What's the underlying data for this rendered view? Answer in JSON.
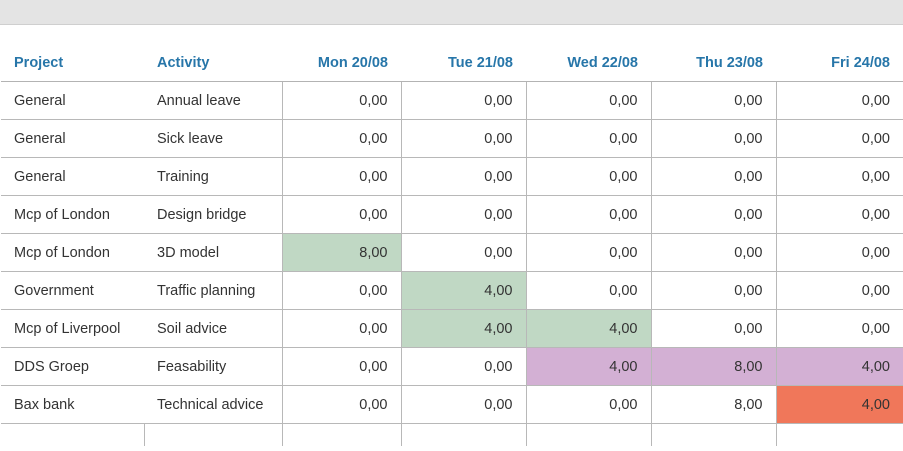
{
  "colors": {
    "header_text": "#2776a9",
    "green": "#c0d8c4",
    "purple": "#d3b0d4",
    "red": "#f0775a"
  },
  "header": {
    "project": "Project",
    "activity": "Activity",
    "days": [
      "Mon 20/08",
      "Tue 21/08",
      "Wed 22/08",
      "Thu 23/08",
      "Fri 24/08"
    ]
  },
  "rows": [
    {
      "project": "General",
      "activity": "Annual leave",
      "values": [
        "0,00",
        "0,00",
        "0,00",
        "0,00",
        "0,00"
      ],
      "highlights": [
        "",
        "",
        "",
        "",
        ""
      ]
    },
    {
      "project": "General",
      "activity": "Sick leave",
      "values": [
        "0,00",
        "0,00",
        "0,00",
        "0,00",
        "0,00"
      ],
      "highlights": [
        "",
        "",
        "",
        "",
        ""
      ]
    },
    {
      "project": "General",
      "activity": "Training",
      "values": [
        "0,00",
        "0,00",
        "0,00",
        "0,00",
        "0,00"
      ],
      "highlights": [
        "",
        "",
        "",
        "",
        ""
      ]
    },
    {
      "project": "Mcp of London",
      "activity": "Design bridge",
      "values": [
        "0,00",
        "0,00",
        "0,00",
        "0,00",
        "0,00"
      ],
      "highlights": [
        "",
        "",
        "",
        "",
        ""
      ]
    },
    {
      "project": "Mcp of London",
      "activity": "3D model",
      "values": [
        "8,00",
        "0,00",
        "0,00",
        "0,00",
        "0,00"
      ],
      "highlights": [
        "green",
        "",
        "",
        "",
        ""
      ]
    },
    {
      "project": "Government",
      "activity": "Traffic planning",
      "values": [
        "0,00",
        "4,00",
        "0,00",
        "0,00",
        "0,00"
      ],
      "highlights": [
        "",
        "green",
        "",
        "",
        ""
      ]
    },
    {
      "project": "Mcp of Liverpool",
      "activity": "Soil advice",
      "values": [
        "0,00",
        "4,00",
        "4,00",
        "0,00",
        "0,00"
      ],
      "highlights": [
        "",
        "green",
        "green",
        "",
        ""
      ]
    },
    {
      "project": "DDS Groep",
      "activity": "Feasability",
      "values": [
        "0,00",
        "0,00",
        "4,00",
        "8,00",
        "4,00"
      ],
      "highlights": [
        "",
        "",
        "purple",
        "purple",
        "purple"
      ]
    },
    {
      "project": "Bax bank",
      "activity": "Technical advice",
      "values": [
        "0,00",
        "0,00",
        "0,00",
        "8,00",
        "4,00"
      ],
      "highlights": [
        "",
        "",
        "",
        "",
        "red"
      ]
    }
  ]
}
